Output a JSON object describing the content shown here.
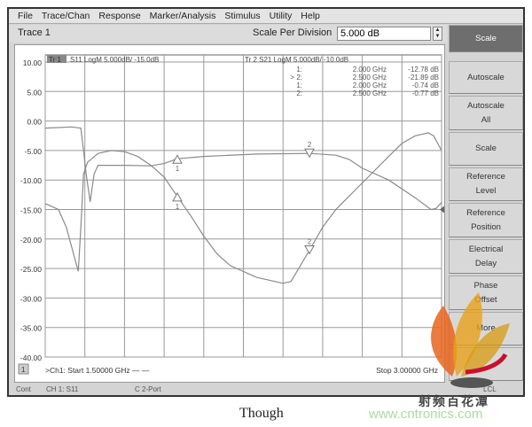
{
  "menu": [
    "File",
    "Trace/Chan",
    "Response",
    "Marker/Analysis",
    "Stimulus",
    "Utility",
    "Help"
  ],
  "tracebar": {
    "trace": "Trace 1",
    "scale_label": "Scale Per Division",
    "scale_value": "5.000 dB"
  },
  "trace_header": {
    "tr1_badge": "Tr 1",
    "tr1": "S11 LogM 5.000dB/  -15.0dB",
    "tr2": "Tr 2  S21 LogM 5.000dB/  -10.0dB"
  },
  "markers": [
    {
      "id": "1:",
      "freq": "2.000 GHz",
      "value": "-12.78 dB"
    },
    {
      "id": "> 2:",
      "freq": "2.500 GHz",
      "value": "-21.89 dB"
    },
    {
      "id": "1:",
      "freq": "2.000 GHz",
      "value": "-0.74 dB"
    },
    {
      "id": "2:",
      "freq": "2.500 GHz",
      "value": "-0.77 dB"
    }
  ],
  "softkeys": [
    "Scale",
    "Autoscale",
    "Autoscale\nAll",
    "Scale",
    "Reference\nLevel",
    "Reference\nPosition",
    "Electrical\nDelay",
    "Phase\nOffset",
    "More"
  ],
  "footer": {
    "ch": "1",
    "start": ">Ch1: Start  1.50000 GHz  — —",
    "stop": "Stop  3.00000 GHz"
  },
  "status": {
    "cont": "Cont",
    "ch": "CH 1:  S11",
    "port": "C  2-Port",
    "lcl": "LCL"
  },
  "caption": "Though",
  "watermark": {
    "cn": "射频百花潭",
    "url": "www.cntronics.com"
  },
  "colors": {
    "trace": "#8a8a8a",
    "grid": "#999999",
    "active_key": "#6e6e6e",
    "watermark_url": "#a8dca0"
  },
  "chart_data": {
    "type": "line",
    "x_unit": "GHz",
    "xlim": [
      1.5,
      3.0
    ],
    "ylim": [
      -40,
      10
    ],
    "yticks": [
      "10.00",
      "5.00",
      "0.00",
      "-5.00",
      "-10.00",
      "-15.00",
      "-20.00",
      "-25.00",
      "-30.00",
      "-35.00",
      "-40.00"
    ],
    "grid": true,
    "series": [
      {
        "name": "S11",
        "marker_labels": [
          "1",
          "2"
        ],
        "marker_x": [
          2.0,
          2.5
        ],
        "x": [
          1.5,
          1.55,
          1.58,
          1.61,
          1.625,
          1.635,
          1.645,
          1.66,
          1.7,
          1.75,
          1.8,
          1.85,
          1.9,
          1.95,
          2.0,
          2.05,
          2.1,
          2.15,
          2.2,
          2.3,
          2.4,
          2.43,
          2.5,
          2.55,
          2.6,
          2.7,
          2.8,
          2.85,
          2.9,
          2.95,
          2.97,
          3.0
        ],
        "y": [
          -14,
          -15,
          -18,
          -23,
          -25.5,
          -18,
          -9,
          -7,
          -5.5,
          -5,
          -5.2,
          -6,
          -7.5,
          -9.5,
          -12.8,
          -16,
          -19.5,
          -22.5,
          -24.5,
          -26.5,
          -27.5,
          -27.2,
          -21.9,
          -18,
          -15,
          -10.5,
          -6,
          -3.8,
          -2.5,
          -2,
          -2.5,
          -5
        ]
      },
      {
        "name": "S21",
        "marker_labels": [
          "1",
          "2"
        ],
        "marker_x": [
          2.0,
          2.5
        ],
        "x": [
          1.5,
          1.6,
          1.635,
          1.645,
          1.655,
          1.67,
          1.685,
          1.7,
          1.8,
          1.9,
          1.95,
          2.0,
          2.1,
          2.3,
          2.5,
          2.6,
          2.65,
          2.7,
          2.8,
          2.9,
          2.96,
          2.98,
          3.0
        ],
        "y": [
          -1.2,
          -1,
          -1.2,
          -5,
          -9,
          -13.7,
          -9,
          -7.5,
          -7.5,
          -7.6,
          -7.2,
          -6.4,
          -6,
          -5.6,
          -5.5,
          -5.8,
          -6.5,
          -8,
          -10,
          -13,
          -15,
          -14.8,
          -13.8
        ]
      }
    ]
  }
}
